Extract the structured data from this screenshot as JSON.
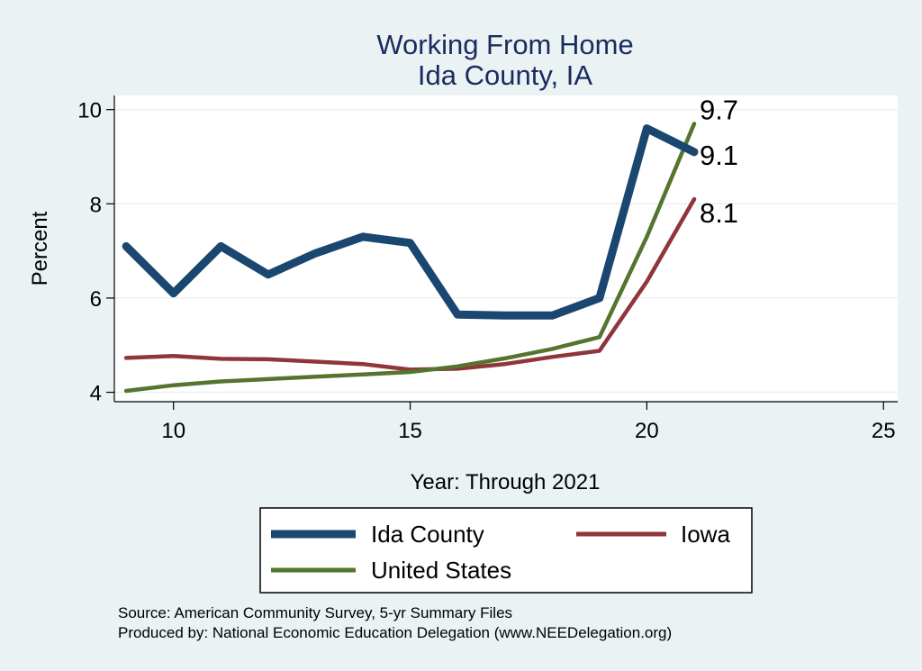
{
  "chart_data": {
    "type": "line",
    "title": [
      "Working From Home",
      "Ida County, IA"
    ],
    "xlabel": "Year: Through 2021",
    "ylabel": "Percent",
    "xlim": [
      8.75,
      25.3
    ],
    "ylim": [
      3.8,
      10.3
    ],
    "xticks": [
      10,
      15,
      20,
      25
    ],
    "yticks": [
      4,
      6,
      8,
      10
    ],
    "grid": true,
    "legend_position": "bottom",
    "x": [
      9,
      10,
      11,
      12,
      13,
      14,
      15,
      16,
      17,
      18,
      19,
      20,
      21
    ],
    "series": [
      {
        "name": "Ida County",
        "color": "#1a476f",
        "values": [
          7.1,
          6.1,
          7.1,
          6.5,
          6.95,
          7.3,
          7.17,
          5.65,
          5.63,
          5.63,
          6.0,
          9.6,
          9.1
        ],
        "end_label": "9.1"
      },
      {
        "name": "Iowa",
        "color": "#90353b",
        "values": [
          4.73,
          4.77,
          4.71,
          4.7,
          4.65,
          4.6,
          4.48,
          4.5,
          4.6,
          4.75,
          4.88,
          6.35,
          8.1
        ],
        "end_label": "8.1"
      },
      {
        "name": "United States",
        "color": "#55752f",
        "values": [
          4.03,
          4.15,
          4.23,
          4.28,
          4.33,
          4.38,
          4.43,
          4.55,
          4.72,
          4.92,
          5.17,
          7.3,
          9.7
        ],
        "end_label": "9.7"
      }
    ],
    "notes": [
      "Source: American Community Survey, 5-yr Summary Files",
      "Produced by: National Economic Education Delegation (www.NEEDelegation.org)"
    ]
  }
}
